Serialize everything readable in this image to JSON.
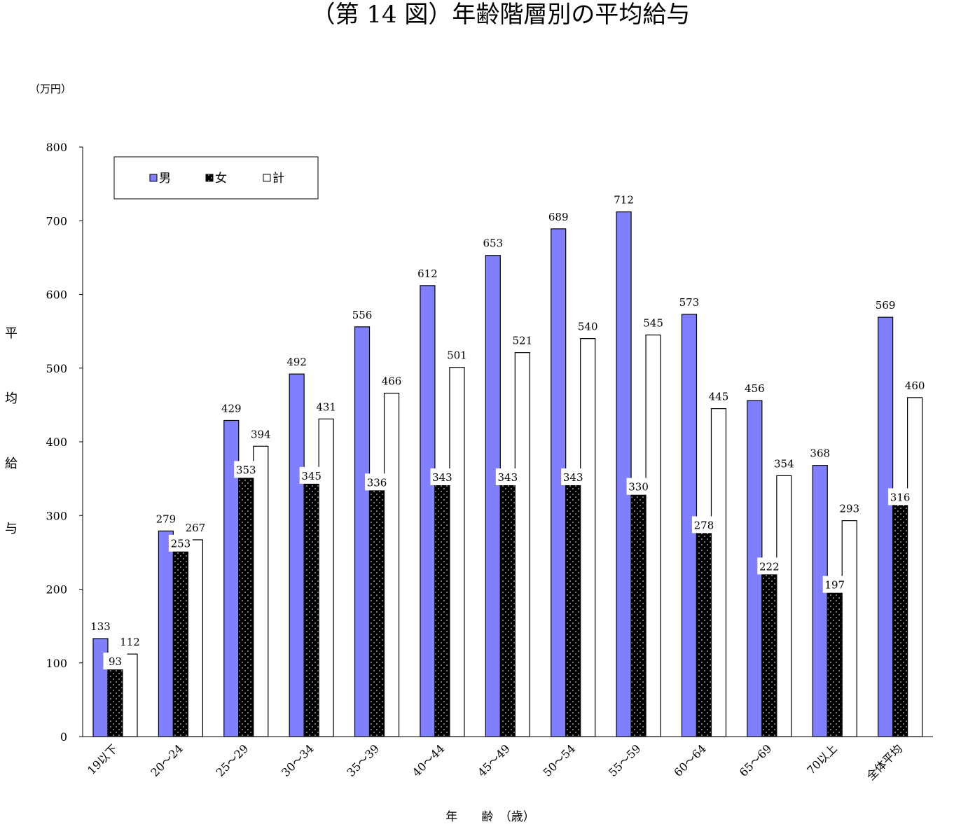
{
  "chart_data": {
    "type": "bar",
    "title": "（第 14 図）年齢階層別の平均給与",
    "unit": "（万円）",
    "ylabel": "平均給与",
    "xlabel": "年　　齢　（歳）",
    "ylim": [
      0,
      800
    ],
    "yticks": [
      0,
      100,
      200,
      300,
      400,
      500,
      600,
      700,
      800
    ],
    "grid": false,
    "legend_position": "top-left",
    "categories": [
      "19以下",
      "20～24",
      "25～29",
      "30～34",
      "35～39",
      "40～44",
      "45～49",
      "50～54",
      "55～59",
      "60～64",
      "65～69",
      "70以上",
      "全体平均"
    ],
    "series": [
      {
        "name": "男",
        "color": "#8080ff",
        "pattern": "solid",
        "values": [
          133,
          279,
          429,
          492,
          556,
          612,
          653,
          689,
          712,
          573,
          456,
          368,
          569
        ]
      },
      {
        "name": "女",
        "color": "#000000",
        "pattern": "dotted",
        "values": [
          93,
          253,
          353,
          345,
          336,
          343,
          343,
          343,
          330,
          278,
          222,
          197,
          316
        ]
      },
      {
        "name": "計",
        "color": "#ffffff",
        "pattern": "solid",
        "values": [
          112,
          267,
          394,
          431,
          466,
          501,
          521,
          540,
          545,
          445,
          354,
          293,
          460
        ]
      }
    ]
  }
}
